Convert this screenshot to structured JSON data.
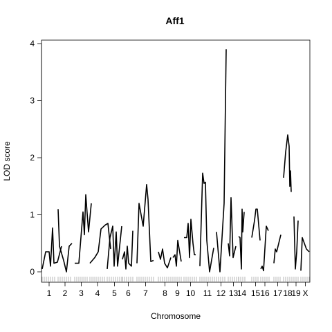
{
  "chart_data": {
    "type": "line",
    "title": "Aff1",
    "xlabel": "Chromosome",
    "ylabel": "LOD score",
    "ylim": [
      0,
      4
    ],
    "yticks": [
      "0",
      "1",
      "2",
      "3",
      "4"
    ],
    "grid": false,
    "legend": "none",
    "line_color": "#000000",
    "chromosomes": [
      {
        "label": "1",
        "points": [
          [
            0,
            0.05
          ],
          [
            5,
            0.35
          ],
          [
            10,
            0.35
          ],
          [
            12,
            0.1
          ],
          [
            15,
            0.77
          ],
          [
            17,
            0.15
          ],
          [
            22,
            0.17
          ],
          [
            28,
            0.45
          ]
        ]
      },
      {
        "label": "2",
        "points": [
          [
            0,
            1.1
          ],
          [
            2,
            0.45
          ],
          [
            8,
            0.2
          ],
          [
            12,
            0.0
          ],
          [
            16,
            0.45
          ],
          [
            20,
            0.5
          ]
        ]
      },
      {
        "label": "3",
        "points": [
          [
            0,
            0.15
          ],
          [
            6,
            0.15
          ],
          [
            12,
            1.05
          ],
          [
            14,
            0.65
          ],
          [
            16,
            1.35
          ],
          [
            20,
            0.7
          ],
          [
            24,
            1.2
          ]
        ]
      },
      {
        "label": "4",
        "points": [
          [
            0,
            0.15
          ],
          [
            7,
            0.25
          ],
          [
            12,
            0.35
          ],
          [
            16,
            0.75
          ],
          [
            22,
            0.82
          ],
          [
            26,
            0.85
          ],
          [
            30,
            0.4
          ]
        ]
      },
      {
        "label": "5",
        "points": [
          [
            0,
            0.05
          ],
          [
            4,
            0.6
          ],
          [
            8,
            0.8
          ],
          [
            10,
            0.1
          ],
          [
            13,
            0.7
          ],
          [
            15,
            0.1
          ],
          [
            21,
            0.8
          ]
        ]
      },
      {
        "label": "6",
        "points": [
          [
            0,
            0.22
          ],
          [
            3,
            0.35
          ],
          [
            5,
            0.05
          ],
          [
            7,
            0.45
          ],
          [
            9,
            0.15
          ],
          [
            13,
            0.1
          ],
          [
            15,
            0.72
          ]
        ]
      },
      {
        "label": "7",
        "points": [
          [
            0,
            0.15
          ],
          [
            3,
            1.2
          ],
          [
            9,
            0.8
          ],
          [
            14,
            1.53
          ],
          [
            16,
            1.27
          ],
          [
            20,
            0.18
          ],
          [
            24,
            0.2
          ]
        ]
      },
      {
        "label": "8",
        "points": [
          [
            0,
            0.35
          ],
          [
            3,
            0.22
          ],
          [
            6,
            0.4
          ],
          [
            9,
            0.15
          ],
          [
            13,
            0.07
          ],
          [
            18,
            0.25
          ]
        ]
      },
      {
        "label": "9",
        "points": [
          [
            0,
            0.25
          ],
          [
            3,
            0.3
          ],
          [
            5,
            0.1
          ],
          [
            7,
            0.55
          ],
          [
            12,
            0.18
          ]
        ]
      },
      {
        "label": "10",
        "points": [
          [
            0,
            0.6
          ],
          [
            4,
            0.6
          ],
          [
            6,
            0.85
          ],
          [
            8,
            0.25
          ],
          [
            10,
            0.92
          ],
          [
            13,
            0.5
          ],
          [
            15,
            0.3
          ],
          [
            17,
            0.3
          ]
        ]
      },
      {
        "label": "11",
        "points": [
          [
            0,
            0.1
          ],
          [
            4,
            1.73
          ],
          [
            6,
            1.55
          ],
          [
            8,
            1.57
          ],
          [
            10,
            0.55
          ],
          [
            14,
            0.0
          ],
          [
            20,
            0.42
          ]
        ]
      },
      {
        "label": "12",
        "points": [
          [
            0,
            0.7
          ],
          [
            5,
            0.0
          ],
          [
            11,
            1.2
          ],
          [
            14,
            3.9
          ]
        ]
      },
      {
        "label": "13",
        "points": [
          [
            0,
            0.5
          ],
          [
            2,
            0.28
          ],
          [
            4,
            1.3
          ],
          [
            7,
            0.25
          ],
          [
            11,
            0.45
          ]
        ]
      },
      {
        "label": "14",
        "points": [
          [
            0,
            0.62
          ],
          [
            2,
            0.6
          ],
          [
            4,
            0.05
          ],
          [
            5,
            1.1
          ],
          [
            6,
            0.7
          ],
          [
            8,
            1.05
          ]
        ]
      },
      {
        "label": "15",
        "points": [
          [
            0,
            0.6
          ],
          [
            4,
            0.9
          ],
          [
            6,
            1.1
          ],
          [
            8,
            1.1
          ],
          [
            12,
            0.55
          ]
        ]
      },
      {
        "label": "16",
        "points": [
          [
            0,
            0.05
          ],
          [
            2,
            0.1
          ],
          [
            4,
            0.02
          ],
          [
            8,
            0.8
          ],
          [
            11,
            0.72
          ]
        ]
      },
      {
        "label": "17",
        "points": [
          [
            0,
            0.15
          ],
          [
            2,
            0.4
          ],
          [
            4,
            0.35
          ],
          [
            10,
            0.65
          ]
        ]
      },
      {
        "label": "18",
        "points": [
          [
            0,
            1.65
          ],
          [
            3,
            2.1
          ],
          [
            6,
            2.4
          ],
          [
            8,
            2.2
          ],
          [
            9,
            1.5
          ],
          [
            10,
            1.77
          ],
          [
            11,
            1.4
          ]
        ]
      },
      {
        "label": "19",
        "points": [
          [
            0,
            0.97
          ],
          [
            2,
            0.05
          ],
          [
            4,
            0.35
          ],
          [
            6,
            0.9
          ]
        ]
      },
      {
        "label": "X",
        "points": [
          [
            0,
            0.02
          ],
          [
            2,
            0.6
          ],
          [
            8,
            0.4
          ],
          [
            12,
            0.35
          ]
        ]
      }
    ]
  }
}
